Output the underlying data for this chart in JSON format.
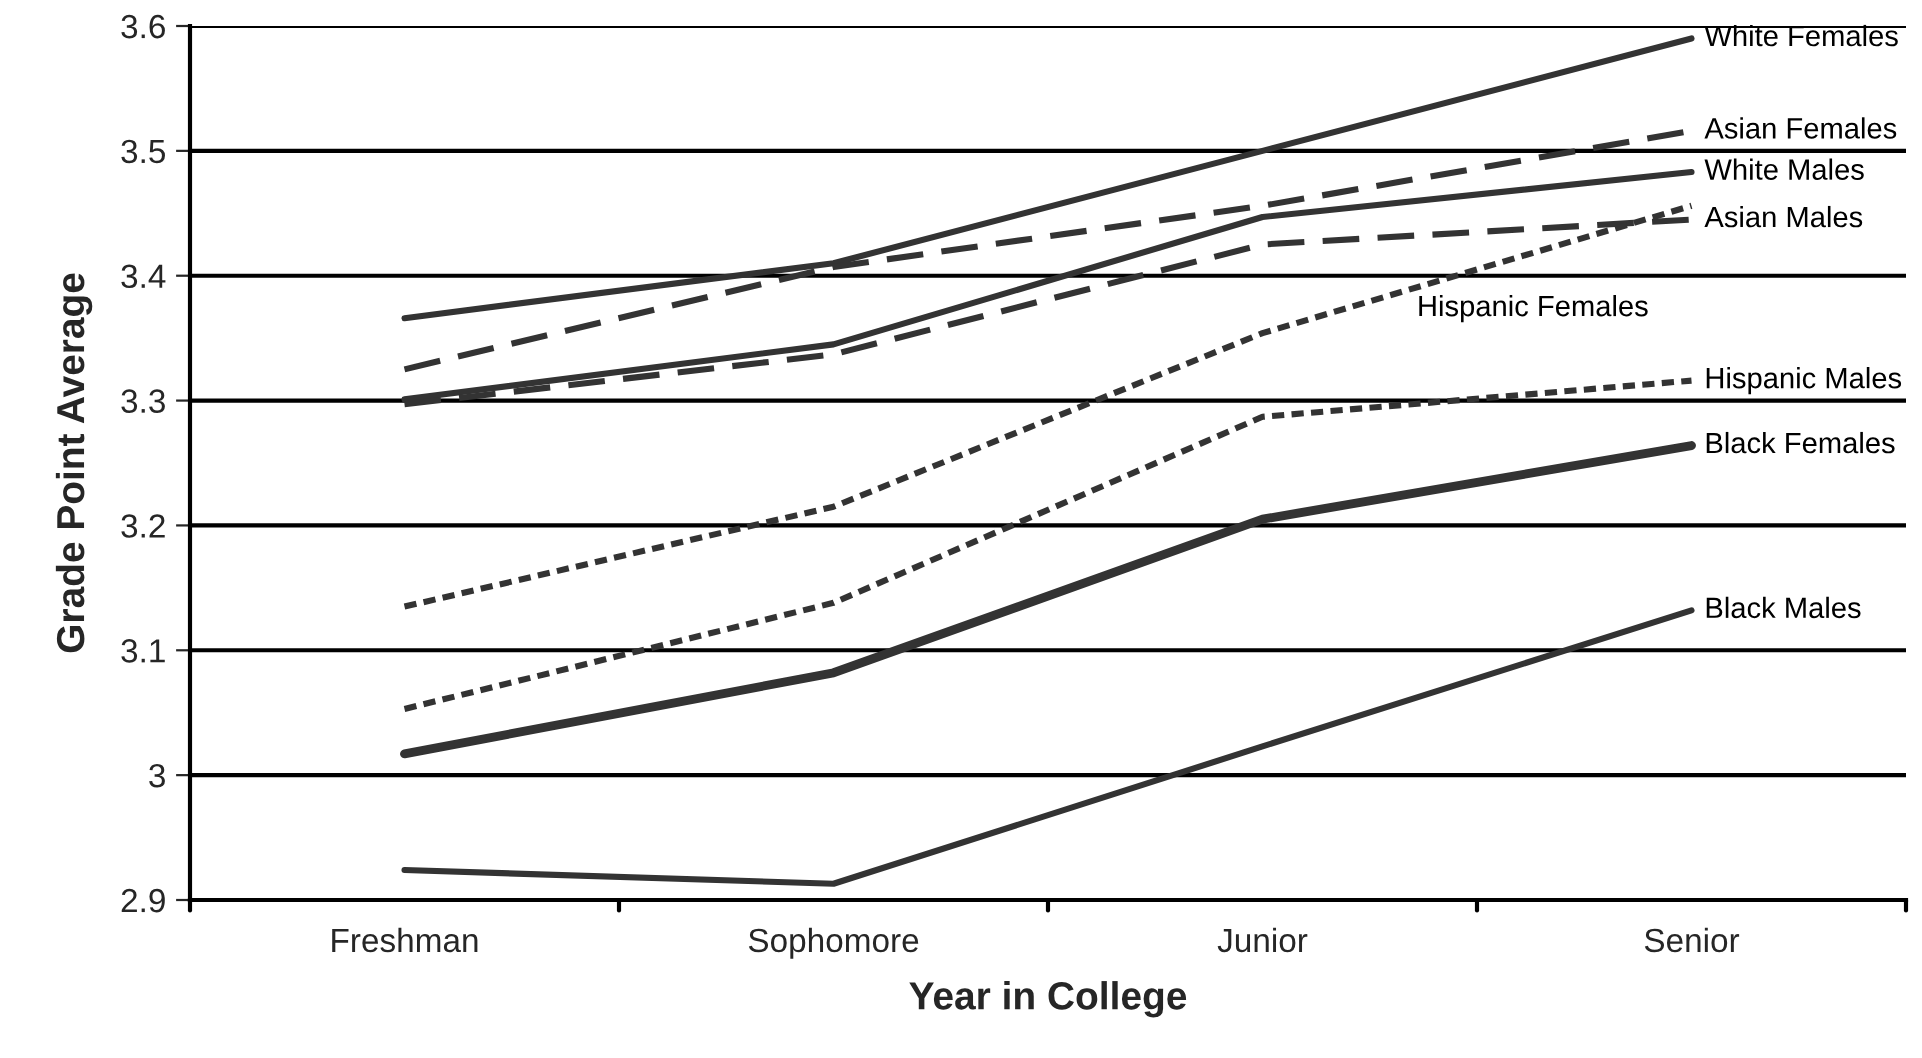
{
  "chart_data": {
    "type": "line",
    "xlabel": "Year in College",
    "ylabel": "Grade Point Average",
    "categories": [
      "Freshman",
      "Sophomore",
      "Junior",
      "Senior"
    ],
    "ylim": [
      2.9,
      3.6
    ],
    "yticks": [
      2.9,
      3,
      3.1,
      3.2,
      3.3,
      3.4,
      3.5,
      3.6
    ],
    "grid": "y",
    "legend": false,
    "marker": "none",
    "series": [
      {
        "name": "White Females",
        "color": "#333333",
        "line_style": "solid",
        "values": [
          3.366,
          3.41,
          3.5,
          3.59
        ]
      },
      {
        "name": "Asian Females",
        "color": "#333333",
        "line_style": "dashed",
        "values": [
          3.325,
          3.407,
          3.456,
          3.516
        ]
      },
      {
        "name": "White Males",
        "color": "#333333",
        "line_style": "solid",
        "values": [
          3.301,
          3.345,
          3.447,
          3.483
        ]
      },
      {
        "name": "Asian Males",
        "color": "#333333",
        "line_style": "dashed",
        "values": [
          3.297,
          3.337,
          3.425,
          3.445
        ]
      },
      {
        "name": "Hispanic Females",
        "color": "#333333",
        "line_style": "dotted",
        "values": [
          3.135,
          3.215,
          3.354,
          3.456
        ]
      },
      {
        "name": "Hispanic Males",
        "color": "#333333",
        "line_style": "dotted",
        "values": [
          3.053,
          3.138,
          3.287,
          3.316
        ]
      },
      {
        "name": "Black Females",
        "color": "#333333",
        "line_style": "solid",
        "values": [
          3.017,
          3.082,
          3.205,
          3.264
        ]
      },
      {
        "name": "Black Males",
        "color": "#333333",
        "line_style": "solid",
        "values": [
          2.924,
          2.913,
          3.023,
          3.132
        ]
      }
    ]
  }
}
